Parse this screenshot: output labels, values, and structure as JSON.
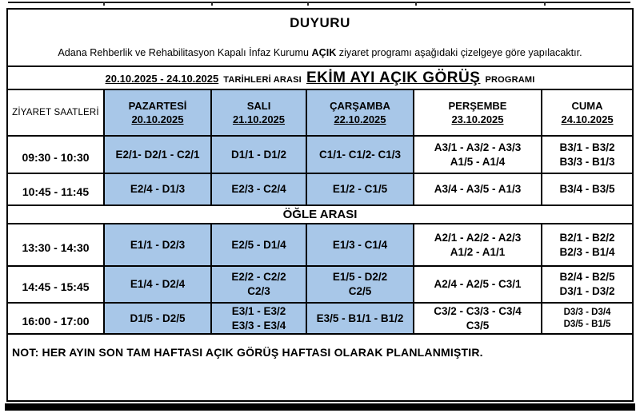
{
  "announcement": {
    "title": "DUYURU",
    "subtitle_prefix": "Adana Rehberlik ve Rehabilitasyon Kapalı İnfaz Kurumu ",
    "subtitle_bold": "AÇIK",
    "subtitle_suffix": " ziyaret programı aşağıdaki çizelgeye göre yapılacaktır."
  },
  "program_header": {
    "date_range": "20.10.2025 - 24.10.2025",
    "between_text": "TARİHLERİ ARASI",
    "highlight": "EKİM AYI AÇIK GÖRÜŞ",
    "suffix": "PROGRAMI"
  },
  "schedule": {
    "time_column_header": "ZİYARET SAATLERİ",
    "day_headers": [
      {
        "name": "PAZARTESİ",
        "date": "20.10.2025",
        "highlighted": true
      },
      {
        "name": "SALI",
        "date": "21.10.2025",
        "highlighted": true
      },
      {
        "name": "ÇARŞAMBA",
        "date": "22.10.2025",
        "highlighted": true
      },
      {
        "name": "PERŞEMBE",
        "date": "23.10.2025",
        "highlighted": false
      },
      {
        "name": "CUMA",
        "date": "24.10.2025",
        "highlighted": false
      }
    ],
    "rows": [
      {
        "type": "time",
        "time": "09:30 - 10:30",
        "cells": [
          {
            "lines": [
              "E2/1- D2/1 - C2/1"
            ]
          },
          {
            "lines": [
              "D1/1 - D1/2"
            ]
          },
          {
            "lines": [
              "C1/1- C1/2- C1/3"
            ]
          },
          {
            "lines": [
              "A3/1 - A3/2 - A3/3",
              "A1/5 - A1/4"
            ]
          },
          {
            "lines": [
              "B3/1 - B3/2",
              "B3/3 - B1/3"
            ]
          }
        ]
      },
      {
        "type": "time",
        "time": "10:45 - 11:45",
        "cells": [
          {
            "lines": [
              "E2/4 - D1/3"
            ]
          },
          {
            "lines": [
              "E2/3 - C2/4"
            ]
          },
          {
            "lines": [
              "E1/2 - C1/5"
            ]
          },
          {
            "lines": [
              "A3/4 - A3/5 - A1/3"
            ]
          },
          {
            "lines": [
              "B3/4 - B3/5"
            ]
          }
        ]
      },
      {
        "type": "break",
        "label": "ÖĞLE ARASI"
      },
      {
        "type": "time",
        "time": "13:30 - 14:30",
        "cells": [
          {
            "lines": [
              "E1/1 - D2/3"
            ]
          },
          {
            "lines": [
              "E2/5 - D1/4"
            ]
          },
          {
            "lines": [
              "E1/3 - C1/4"
            ]
          },
          {
            "lines": [
              "A2/1 - A2/2 - A2/3",
              "A1/2 - A1/1"
            ]
          },
          {
            "lines": [
              "B2/1 - B2/2",
              "B2/3 - B1/4"
            ]
          }
        ]
      },
      {
        "type": "time",
        "time": "14:45 - 15:45",
        "cells": [
          {
            "lines": [
              "E1/4 - D2/4"
            ]
          },
          {
            "lines": [
              "E2/2 - C2/2",
              "C2/3"
            ]
          },
          {
            "lines": [
              "E1/5 - D2/2",
              "C2/5"
            ]
          },
          {
            "lines": [
              "A2/4 - A2/5 - C3/1"
            ]
          },
          {
            "lines": [
              "B2/4 - B2/5",
              "D3/1 - D3/2"
            ]
          }
        ]
      },
      {
        "type": "time",
        "time": "16:00 - 17:00",
        "cells": [
          {
            "lines": [
              "D1/5 - D2/5"
            ]
          },
          {
            "lines": [
              "E3/1 - E3/2",
              "E3/3 - E3/4"
            ]
          },
          {
            "lines": [
              "E3/5 - B1/1 - B1/2"
            ]
          },
          {
            "lines": [
              "C3/2 - C3/3 - C3/4",
              "C3/5"
            ]
          },
          {
            "lines": [
              "D3/3 - D3/4",
              "D3/5 - B1/5"
            ],
            "small": true
          }
        ]
      }
    ]
  },
  "note": "NOT: HER AYIN SON TAM HAFTASI AÇIK GÖRÜŞ HAFTASI OLARAK PLANLANMIŞTIR.",
  "colors": {
    "highlight_blue": "#a8c7e8",
    "border_black": "#000000"
  }
}
